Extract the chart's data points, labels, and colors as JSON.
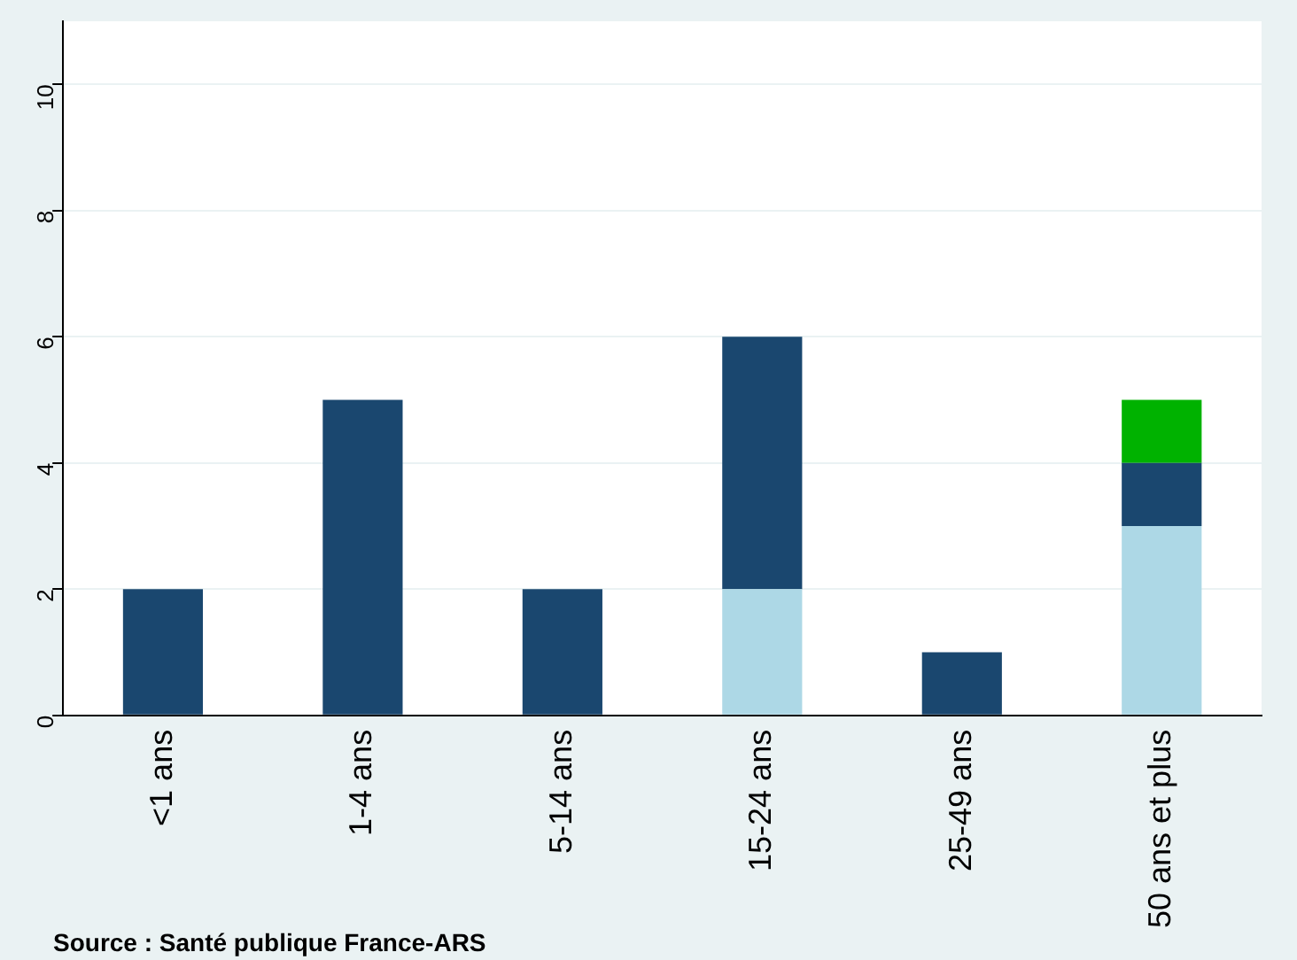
{
  "chart_data": {
    "type": "bar",
    "stacked": true,
    "categories": [
      "<1 ans",
      "1-4 ans",
      "5-14 ans",
      "15-24 ans",
      "25-49 ans",
      "50 ans et plus"
    ],
    "series": [
      {
        "color": "#add8e6",
        "values": [
          0,
          0,
          0,
          2,
          0,
          3
        ]
      },
      {
        "color": "#1a476f",
        "values": [
          2,
          5,
          2,
          4,
          1,
          1
        ]
      },
      {
        "color": "#00b200",
        "values": [
          0,
          0,
          0,
          0,
          0,
          1
        ]
      }
    ],
    "ylim": [
      0,
      11
    ],
    "yticks": [
      0,
      2,
      4,
      6,
      8,
      10
    ],
    "grid": "y",
    "legend": false,
    "annotations": [
      "Source : Santé publique France-ARS"
    ]
  }
}
